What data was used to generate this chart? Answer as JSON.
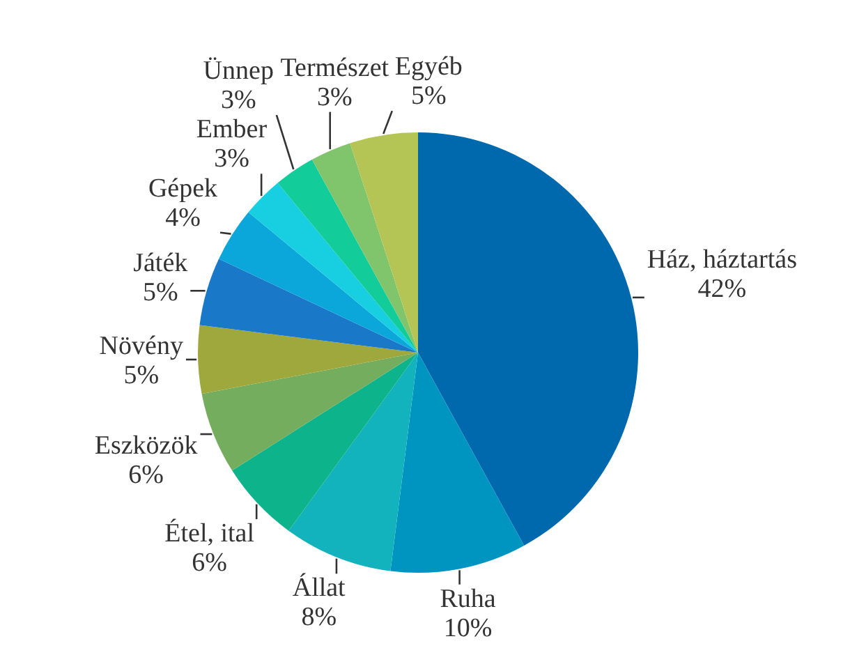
{
  "chart_data": {
    "type": "pie",
    "categories": [
      "Ház, háztartás",
      "Ruha",
      "Állat",
      "Étel, ital",
      "Eszközök",
      "Növény",
      "Játék",
      "Gépek",
      "Ember",
      "Ünnep",
      "Természet",
      "Egyéb"
    ],
    "values": [
      42,
      10,
      8,
      6,
      6,
      5,
      5,
      4,
      3,
      3,
      3,
      5
    ],
    "value_labels": [
      "42%",
      "10%",
      "8%",
      "6%",
      "6%",
      "5%",
      "5%",
      "4%",
      "3%",
      "3%",
      "3%",
      "5%"
    ],
    "colors": [
      "#0068ad",
      "#0095c0",
      "#12b3bd",
      "#0db38a",
      "#75ad5e",
      "#9ea83c",
      "#1a78c8",
      "#0ba7db",
      "#17cfe0",
      "#12cc9a",
      "#80c56c",
      "#b4c555"
    ]
  }
}
